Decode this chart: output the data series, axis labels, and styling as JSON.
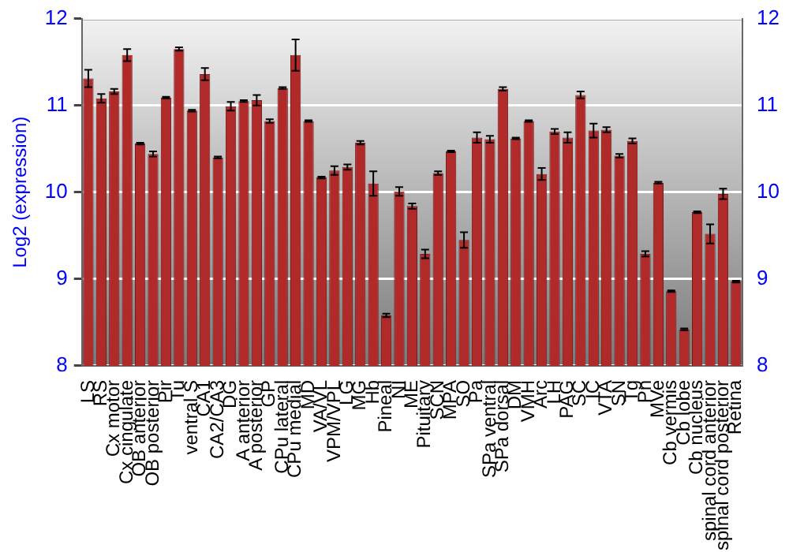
{
  "chart_data": {
    "type": "bar",
    "ylabel": "Log2 (expression)",
    "categories": [
      "LS",
      "RS",
      "Cx motor",
      "Cx cingulate",
      "OB anterior",
      "OB posterior",
      "Pir",
      "Tu",
      "ventral S",
      "CA1",
      "CA2/CA3",
      "DG",
      "A anterior",
      "A posterior",
      "GP",
      "CPu lateral",
      "CPu medial",
      "MD",
      "VA/VL",
      "VPM/VPL",
      "LG",
      "MG",
      "Hb",
      "Pineal",
      "NI",
      "ME",
      "Pituitary",
      "SCN",
      "MPA",
      "SO",
      "Pa",
      "SPa ventral",
      "SPa dorsal",
      "DM",
      "VMH",
      "Arc",
      "LH",
      "PAG",
      "SC",
      "IC",
      "VTA",
      "SN",
      "Tg",
      "Pn",
      "MVe",
      "Cb vermis",
      "Cb lobe",
      "Cb nucleus",
      "spinal cord anterior",
      "spinal cord posterior",
      "Retina"
    ],
    "values": [
      11.31,
      11.08,
      11.16,
      11.58,
      10.56,
      10.44,
      11.09,
      11.65,
      10.94,
      11.36,
      10.4,
      10.99,
      11.05,
      11.06,
      10.82,
      11.2,
      11.58,
      10.82,
      10.17,
      10.25,
      10.29,
      10.57,
      10.1,
      8.58,
      10.01,
      9.84,
      9.29,
      10.22,
      10.47,
      9.45,
      10.63,
      10.61,
      11.19,
      10.62,
      10.82,
      10.21,
      10.7,
      10.63,
      11.12,
      10.71,
      10.72,
      10.42,
      10.59,
      9.29,
      10.11,
      8.86,
      8.42,
      9.77,
      9.52,
      9.98,
      8.97
    ],
    "errors": [
      0.1,
      0.05,
      0.03,
      0.07,
      0.01,
      0.03,
      0.01,
      0.02,
      0.01,
      0.07,
      0.01,
      0.05,
      0.01,
      0.06,
      0.02,
      0.01,
      0.18,
      0.01,
      0.01,
      0.05,
      0.03,
      0.02,
      0.14,
      0.02,
      0.05,
      0.03,
      0.05,
      0.02,
      0.01,
      0.09,
      0.06,
      0.04,
      0.02,
      0.01,
      0.01,
      0.07,
      0.03,
      0.06,
      0.04,
      0.08,
      0.03,
      0.02,
      0.03,
      0.03,
      0.01,
      0.01,
      0.01,
      0.01,
      0.11,
      0.06,
      0.01
    ],
    "color": "#b02a2a",
    "ylim": [
      8,
      12
    ],
    "yticks": [
      8,
      9,
      10,
      11,
      12
    ],
    "y2lim": [
      8,
      12
    ],
    "y2ticks": [
      8,
      9,
      10,
      11,
      12
    ],
    "grid": "y",
    "legend": false
  }
}
